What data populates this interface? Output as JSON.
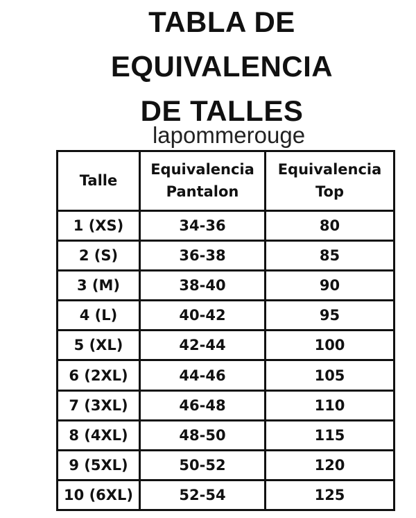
{
  "title_lines": [
    "TABLA DE",
    "EQUIVALENCIA",
    "DE TALLES"
  ],
  "brand": "lapommerouge",
  "table": {
    "headers": [
      {
        "line1": "Talle",
        "line2": ""
      },
      {
        "line1": "Equivalencia",
        "line2": "Pantalon"
      },
      {
        "line1": "Equivalencia",
        "line2": "Top"
      }
    ],
    "rows": [
      [
        "1 (XS)",
        "34-36",
        "80"
      ],
      [
        "2 (S)",
        "36-38",
        "85"
      ],
      [
        "3 (M)",
        "38-40",
        "90"
      ],
      [
        "4 (L)",
        "40-42",
        "95"
      ],
      [
        "5 (XL)",
        "42-44",
        "100"
      ],
      [
        "6 (2XL)",
        "44-46",
        "105"
      ],
      [
        "7 (3XL)",
        "46-48",
        "110"
      ],
      [
        "8 (4XL)",
        "48-50",
        "115"
      ],
      [
        "9 (5XL)",
        "50-52",
        "120"
      ],
      [
        "10 (6XL)",
        "52-54",
        "125"
      ]
    ]
  }
}
